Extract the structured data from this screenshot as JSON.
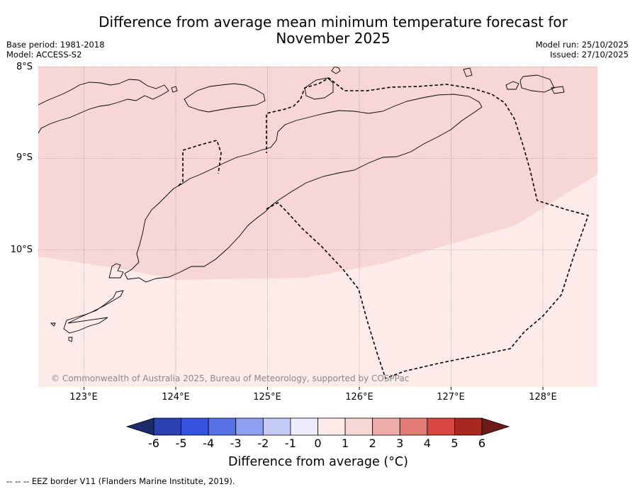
{
  "title_line1": "Difference from average mean minimum temperature forecast for",
  "title_line2": "November 2025",
  "base_period": "Base period: 1981-2018",
  "model": "Model: ACCESS-S2",
  "model_run": "Model run: 25/10/2025",
  "issued": "Issued: 27/10/2025",
  "lat_labels": [
    "8°S",
    "9°S",
    "10°S"
  ],
  "lon_labels": [
    "123°E",
    "124°E",
    "125°E",
    "126°E",
    "127°E",
    "128°E"
  ],
  "copyright": "© Commonwealth of Australia 2025, Bureau of Meteorology, supported by COSPPac",
  "colorbar": {
    "title": "Difference from average (°C)",
    "ticks": [
      "-6",
      "-5",
      "-4",
      "-3",
      "-2",
      "-1",
      "0",
      "1",
      "2",
      "3",
      "4",
      "5",
      "6"
    ],
    "colors": [
      "#1c2a6e",
      "#2a3fb0",
      "#3553e0",
      "#5872e6",
      "#8c9ff0",
      "#c3cbf6",
      "#ececfb",
      "#fcebe9",
      "#f6d7d5",
      "#eeaeaa",
      "#e27b74",
      "#d7463f",
      "#a8281f",
      "#6e1a16"
    ]
  },
  "map": {
    "lon_range": [
      122.5,
      128.6
    ],
    "lat_range": [
      -11.5,
      -8.0
    ],
    "fill_colors": {
      "band_0_1": "#fcebe9",
      "band_1_2": "#f6d7d5"
    }
  },
  "footer": "--  --  -- EEZ border V11 (Flanders Marine Institute, 2019)."
}
